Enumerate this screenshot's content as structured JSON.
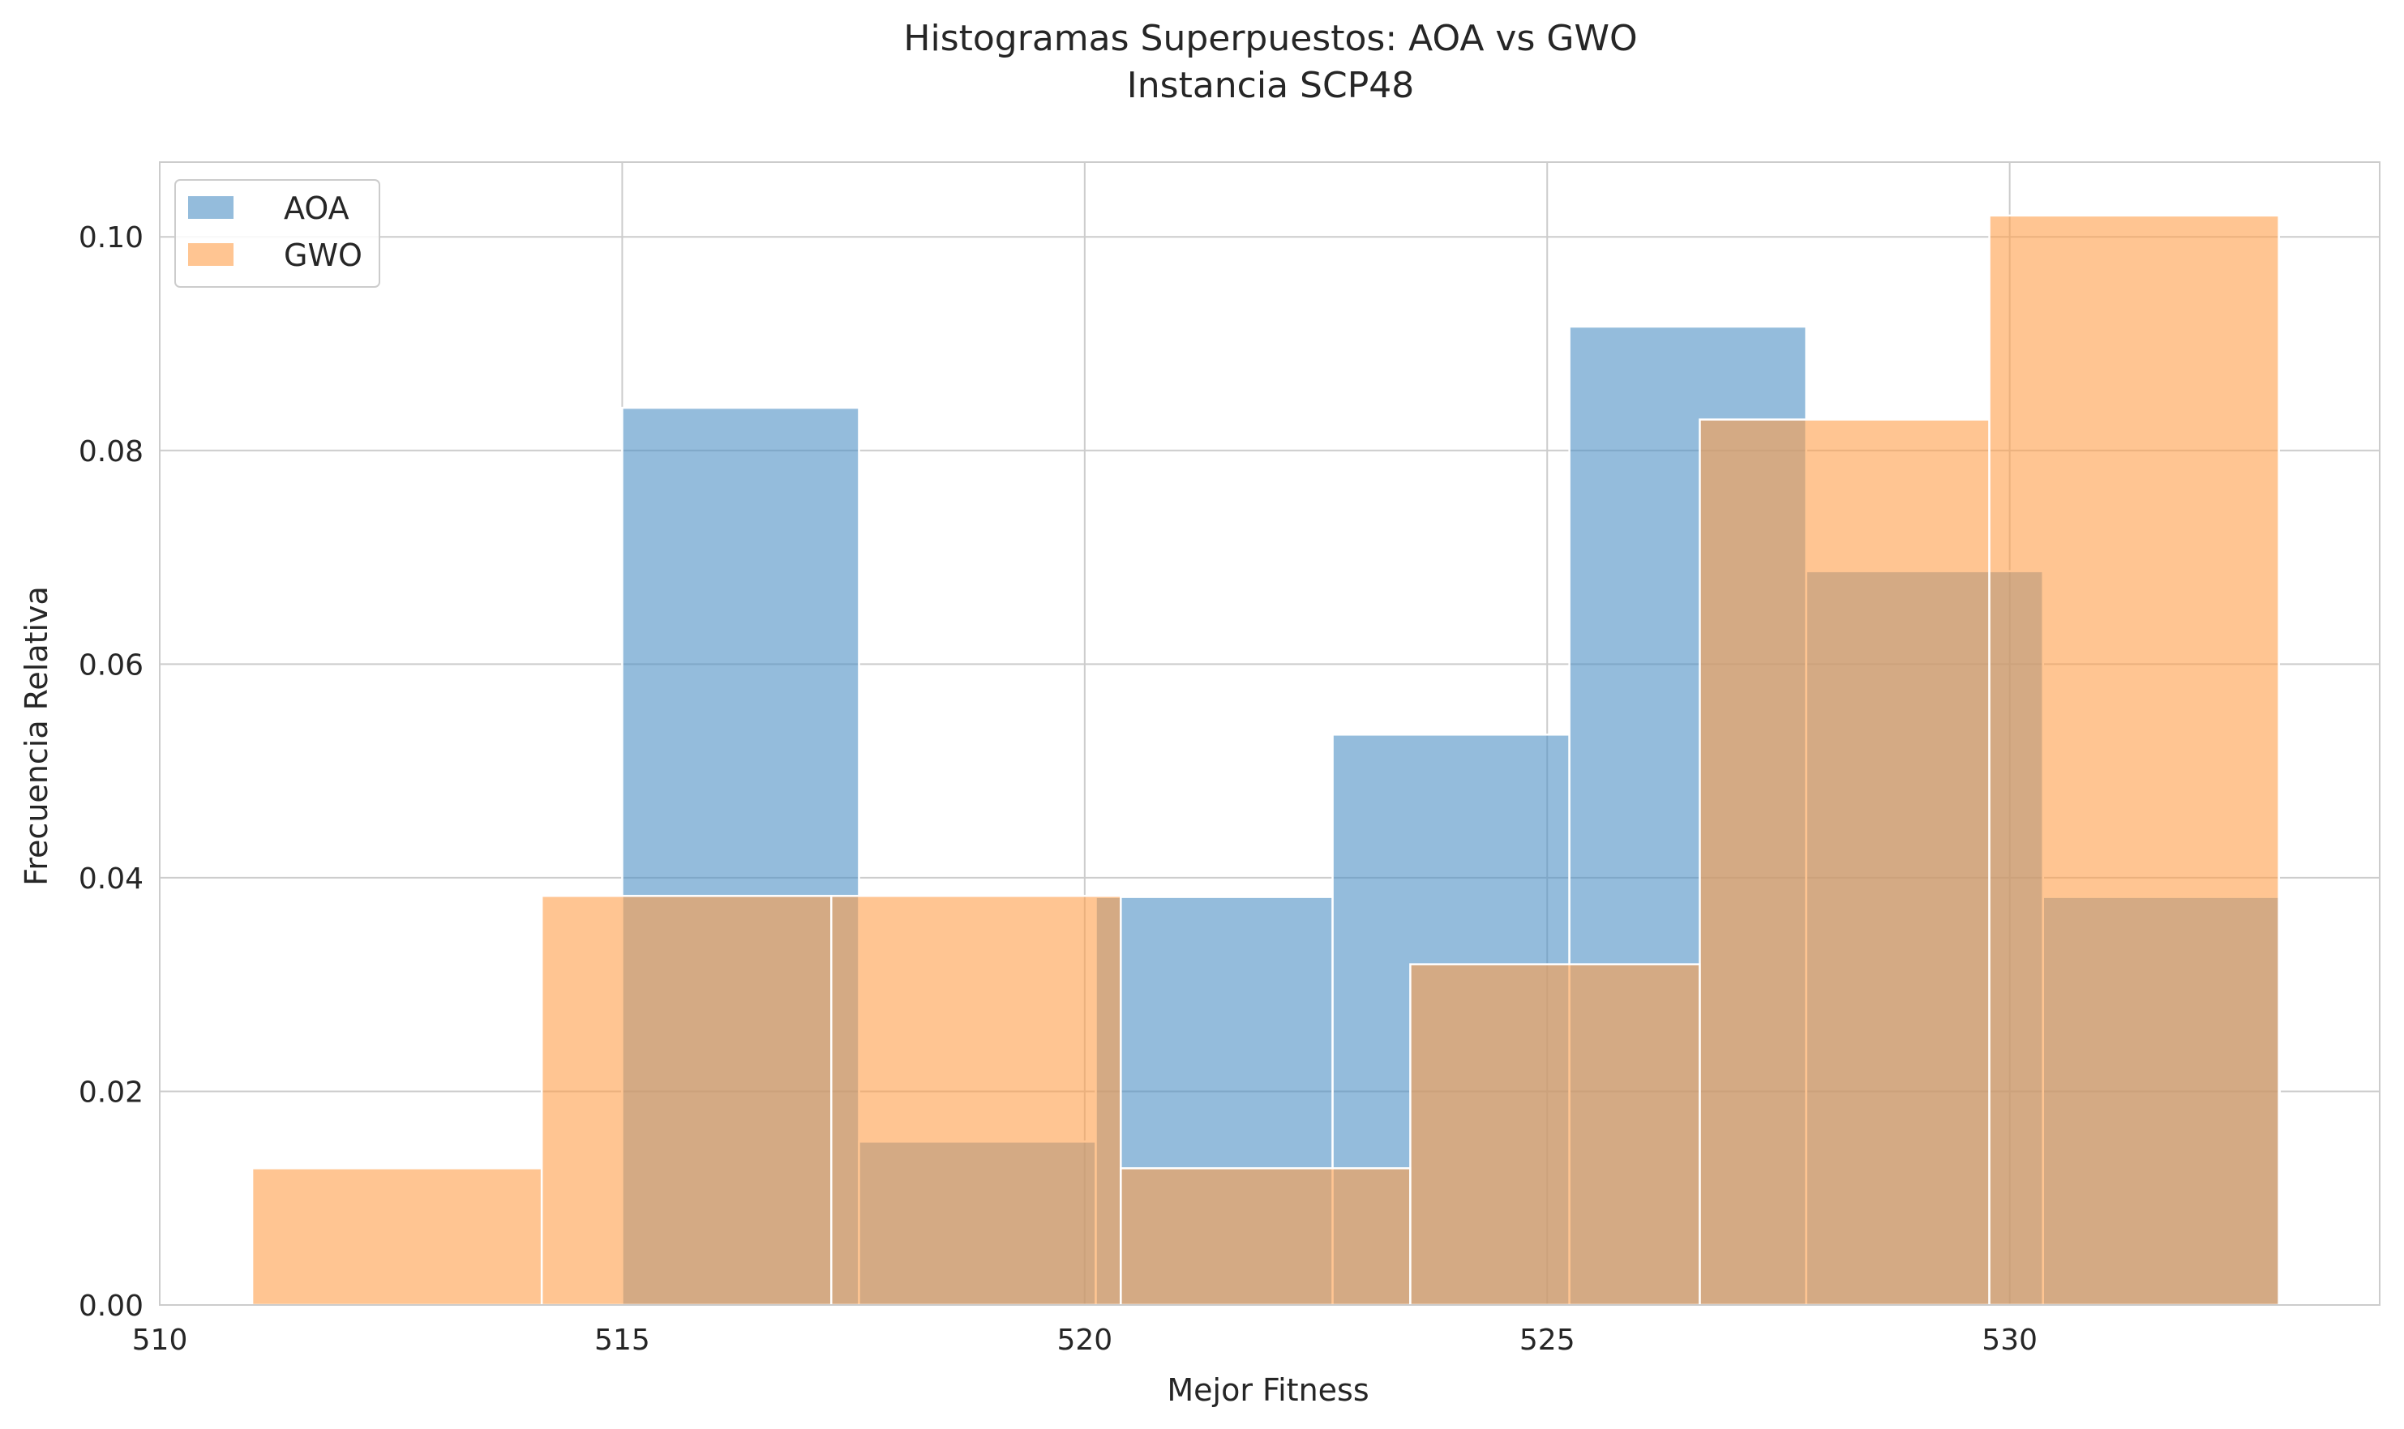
{
  "chart_data": {
    "type": "bar",
    "title": "Histogramas Superpuestos: AOA vs GWO",
    "subtitle": "Instancia SCP48",
    "xlabel": "Mejor Fitness",
    "ylabel": "Frecuencia Relativa",
    "xlim": [
      510,
      534
    ],
    "ylim": [
      0,
      0.107
    ],
    "xticks": [
      510,
      515,
      520,
      525,
      530
    ],
    "xtick_labels": [
      "510",
      "515",
      "520",
      "525",
      "530"
    ],
    "yticks": [
      0,
      0.02,
      0.04,
      0.06,
      0.08,
      0.1
    ],
    "ytick_labels": [
      "0.00",
      "0.02",
      "0.04",
      "0.06",
      "0.08",
      "0.10"
    ],
    "grid": true,
    "legend_position": "top-left",
    "series": [
      {
        "name": "AOA",
        "color": "#4c8fc5",
        "bins": [
          {
            "x0": 515.0,
            "x1": 517.56,
            "value": 0.084
          },
          {
            "x0": 517.56,
            "x1": 520.12,
            "value": 0.0153
          },
          {
            "x0": 520.12,
            "x1": 522.68,
            "value": 0.0382
          },
          {
            "x0": 522.68,
            "x1": 525.24,
            "value": 0.0534
          },
          {
            "x0": 525.24,
            "x1": 527.8,
            "value": 0.0916
          },
          {
            "x0": 527.8,
            "x1": 530.36,
            "value": 0.0687
          },
          {
            "x0": 530.36,
            "x1": 532.92,
            "value": 0.0382
          }
        ]
      },
      {
        "name": "GWO",
        "color": "#ff9f4a",
        "bins": [
          {
            "x0": 511.0,
            "x1": 514.13,
            "value": 0.0128
          },
          {
            "x0": 514.13,
            "x1": 517.26,
            "value": 0.0383
          },
          {
            "x0": 517.26,
            "x1": 520.39,
            "value": 0.0383
          },
          {
            "x0": 520.39,
            "x1": 523.52,
            "value": 0.0128
          },
          {
            "x0": 523.52,
            "x1": 526.65,
            "value": 0.0319
          },
          {
            "x0": 526.65,
            "x1": 529.78,
            "value": 0.0829
          },
          {
            "x0": 529.78,
            "x1": 532.91,
            "value": 0.102
          }
        ]
      }
    ]
  }
}
